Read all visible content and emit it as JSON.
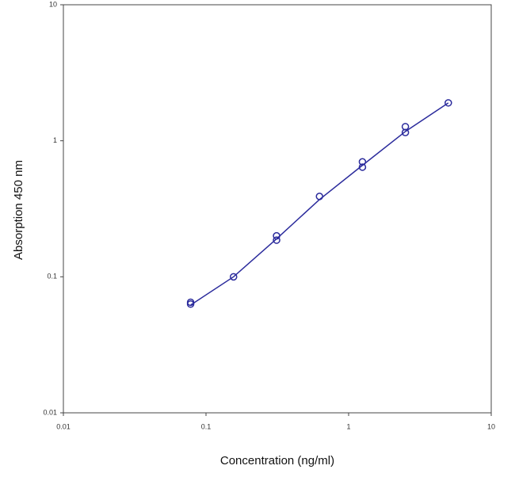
{
  "chart_data": {
    "type": "scatter",
    "x_label": "Concentration (ng/ml)",
    "y_label": "Absorption 450 nm",
    "x": [
      0.078,
      0.078,
      0.156,
      0.3125,
      0.3125,
      0.625,
      1.25,
      1.25,
      2.5,
      2.5,
      5
    ],
    "y": [
      0.065,
      0.063,
      0.1,
      0.2,
      0.186,
      0.39,
      0.7,
      0.64,
      1.27,
      1.15,
      1.9
    ],
    "fit": {
      "x": [
        0.078,
        0.156,
        0.3125,
        0.625,
        1.25,
        2.5,
        5
      ],
      "y": [
        0.062,
        0.1,
        0.19,
        0.37,
        0.66,
        1.17,
        1.9
      ]
    },
    "color": "#2b2b9c",
    "xlim": [
      0.01,
      10
    ],
    "ylim": [
      0.01,
      10
    ],
    "xlog": true,
    "ylog": true,
    "xticks": [
      0.01,
      0.1,
      1,
      10
    ],
    "yticks": [
      0.01,
      0.1,
      1,
      10
    ]
  }
}
